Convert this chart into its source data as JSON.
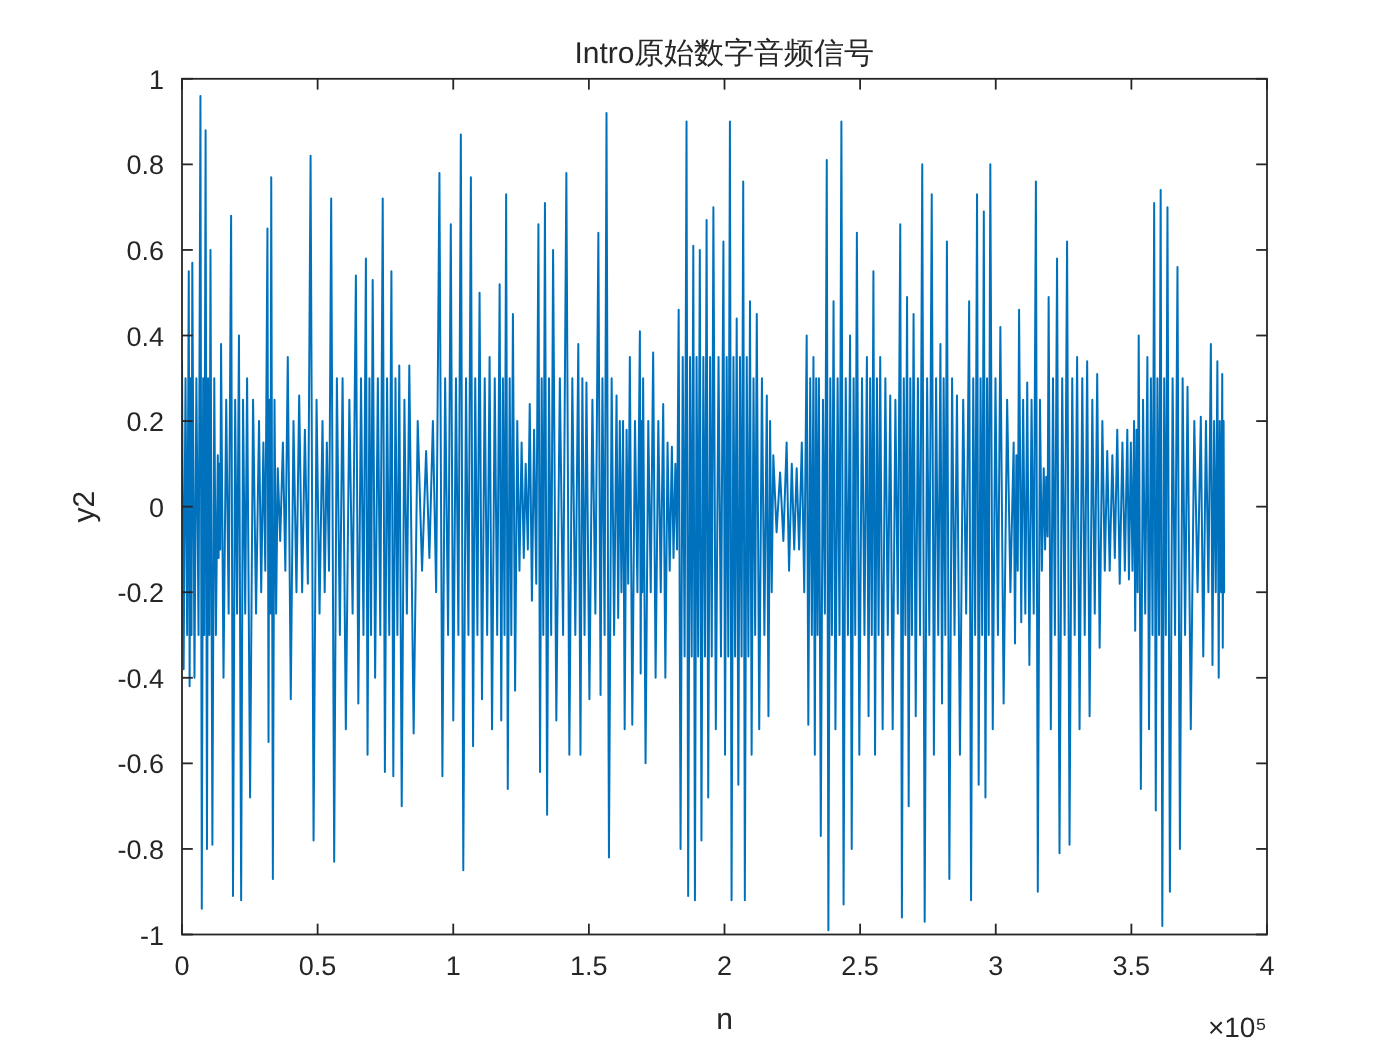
{
  "chart_data": {
    "type": "line",
    "title": "Intro原始数字音频信号",
    "xlabel": "n",
    "ylabel": "y2",
    "annotations": [
      "×10⁵"
    ],
    "color": "#0072bd",
    "xlim": [
      0,
      4
    ],
    "ylim": [
      -1,
      1
    ],
    "xticks": [
      0,
      0.5,
      1,
      1.5,
      2,
      2.5,
      3,
      3.5,
      4
    ],
    "yticks": [
      -1,
      -0.8,
      -0.6,
      -0.4,
      -0.2,
      0,
      0.2,
      0.4,
      0.6,
      0.8,
      1
    ],
    "x": [
      0,
      0.006,
      0.013,
      0.019,
      0.025,
      0.028,
      0.032,
      0.035,
      0.038,
      0.046,
      0.053,
      0.061,
      0.068,
      0.073,
      0.078,
      0.082,
      0.087,
      0.092,
      0.096,
      0.101,
      0.105,
      0.112,
      0.119,
      0.125,
      0.132,
      0.135,
      0.138,
      0.141,
      0.144,
      0.153,
      0.163,
      0.172,
      0.181,
      0.188,
      0.196,
      0.203,
      0.21,
      0.218,
      0.225,
      0.233,
      0.24,
      0.251,
      0.262,
      0.273,
      0.284,
      0.292,
      0.3,
      0.307,
      0.315,
      0.319,
      0.322,
      0.326,
      0.329,
      0.335,
      0.341,
      0.347,
      0.353,
      0.362,
      0.372,
      0.381,
      0.39,
      0.401,
      0.411,
      0.422,
      0.432,
      0.443,
      0.453,
      0.464,
      0.474,
      0.485,
      0.496,
      0.507,
      0.518,
      0.526,
      0.534,
      0.542,
      0.55,
      0.561,
      0.571,
      0.582,
      0.592,
      0.604,
      0.617,
      0.629,
      0.641,
      0.65,
      0.66,
      0.669,
      0.678,
      0.684,
      0.691,
      0.697,
      0.703,
      0.712,
      0.722,
      0.731,
      0.74,
      0.748,
      0.756,
      0.764,
      0.772,
      0.779,
      0.787,
      0.794,
      0.801,
      0.81,
      0.82,
      0.829,
      0.838,
      0.854,
      0.869,
      0.885,
      0.9,
      0.912,
      0.925,
      0.937,
      0.949,
      0.96,
      0.97,
      0.981,
      0.991,
      1.0,
      1.01,
      1.019,
      1.028,
      1.037,
      1.047,
      1.056,
      1.065,
      1.073,
      1.081,
      1.089,
      1.097,
      1.106,
      1.116,
      1.125,
      1.134,
      1.143,
      1.153,
      1.162,
      1.171,
      1.177,
      1.183,
      1.189,
      1.195,
      1.201,
      1.208,
      1.214,
      1.22,
      1.228,
      1.236,
      1.244,
      1.252,
      1.26,
      1.267,
      1.275,
      1.282,
      1.29,
      1.298,
      1.306,
      1.314,
      1.32,
      1.326,
      1.332,
      1.338,
      1.346,
      1.353,
      1.361,
      1.368,
      1.38,
      1.393,
      1.405,
      1.417,
      1.428,
      1.439,
      1.45,
      1.461,
      1.469,
      1.476,
      1.484,
      1.491,
      1.502,
      1.513,
      1.524,
      1.535,
      1.543,
      1.55,
      1.558,
      1.565,
      1.574,
      1.584,
      1.593,
      1.602,
      1.608,
      1.614,
      1.62,
      1.626,
      1.632,
      1.639,
      1.645,
      1.651,
      1.66,
      1.67,
      1.679,
      1.688,
      1.691,
      1.694,
      1.697,
      1.7,
      1.709,
      1.719,
      1.728,
      1.737,
      1.746,
      1.756,
      1.765,
      1.774,
      1.782,
      1.79,
      1.798,
      1.806,
      1.812,
      1.819,
      1.825,
      1.831,
      1.838,
      1.846,
      1.853,
      1.86,
      1.866,
      1.873,
      1.879,
      1.885,
      1.891,
      1.897,
      1.903,
      1.909,
      1.915,
      1.922,
      1.928,
      1.934,
      1.94,
      1.947,
      1.953,
      1.959,
      1.968,
      1.978,
      1.987,
      1.996,
      2.002,
      2.008,
      2.014,
      2.02,
      2.026,
      2.033,
      2.039,
      2.045,
      2.051,
      2.057,
      2.063,
      2.069,
      2.075,
      2.082,
      2.088,
      2.094,
      2.1,
      2.107,
      2.113,
      2.119,
      2.128,
      2.138,
      2.147,
      2.156,
      2.162,
      2.168,
      2.174,
      2.18,
      2.192,
      2.205,
      2.217,
      2.229,
      2.238,
      2.248,
      2.257,
      2.266,
      2.275,
      2.285,
      2.294,
      2.303,
      2.309,
      2.316,
      2.322,
      2.328,
      2.333,
      2.338,
      2.343,
      2.348,
      2.355,
      2.363,
      2.37,
      2.377,
      2.383,
      2.39,
      2.396,
      2.402,
      2.409,
      2.417,
      2.424,
      2.431,
      2.439,
      2.447,
      2.455,
      2.463,
      2.469,
      2.476,
      2.482,
      2.488,
      2.497,
      2.507,
      2.516,
      2.525,
      2.531,
      2.537,
      2.543,
      2.549,
      2.555,
      2.562,
      2.568,
      2.574,
      2.583,
      2.593,
      2.602,
      2.611,
      2.62,
      2.63,
      2.639,
      2.648,
      2.654,
      2.661,
      2.667,
      2.673,
      2.679,
      2.685,
      2.691,
      2.697,
      2.705,
      2.713,
      2.721,
      2.729,
      2.738,
      2.747,
      2.755,
      2.764,
      2.772,
      2.78,
      2.788,
      2.796,
      2.802,
      2.808,
      2.814,
      2.82,
      2.829,
      2.839,
      2.848,
      2.857,
      2.868,
      2.88,
      2.891,
      2.902,
      2.909,
      2.917,
      2.924,
      2.931,
      2.937,
      2.944,
      2.95,
      2.956,
      2.962,
      2.968,
      2.974,
      2.98,
      2.989,
      2.999,
      3.008,
      3.017,
      3.029,
      3.042,
      3.054,
      3.066,
      3.071,
      3.076,
      3.081,
      3.086,
      3.094,
      3.101,
      3.109,
      3.116,
      3.124,
      3.132,
      3.14,
      3.148,
      3.155,
      3.163,
      3.17,
      3.177,
      3.182,
      3.186,
      3.191,
      3.195,
      3.203,
      3.211,
      3.218,
      3.226,
      3.235,
      3.245,
      3.254,
      3.263,
      3.272,
      3.282,
      3.291,
      3.3,
      3.309,
      3.319,
      3.328,
      3.337,
      3.346,
      3.356,
      3.365,
      3.374,
      3.383,
      3.393,
      3.402,
      3.411,
      3.42,
      3.43,
      3.439,
      3.448,
      3.457,
      3.467,
      3.476,
      3.485,
      3.491,
      3.498,
      3.504,
      3.51,
      3.514,
      3.519,
      3.523,
      3.527,
      3.535,
      3.543,
      3.551,
      3.559,
      3.565,
      3.572,
      3.578,
      3.584,
      3.59,
      3.596,
      3.602,
      3.608,
      3.614,
      3.621,
      3.627,
      3.633,
      3.642,
      3.652,
      3.661,
      3.67,
      3.679,
      3.689,
      3.698,
      3.707,
      3.719,
      3.732,
      3.744,
      3.756,
      3.765,
      3.775,
      3.784,
      3.793,
      3.799,
      3.805,
      3.811,
      3.817,
      3.822,
      3.826,
      3.831,
      3.835,
      3.837,
      3.84,
      3.842
    ],
    "values": [
      0.34,
      -0.38,
      0.3,
      -0.3,
      0.55,
      -0.42,
      0.3,
      -0.3,
      0.57,
      -0.4,
      0.3,
      -0.3,
      0.96,
      -0.94,
      0.3,
      -0.3,
      0.88,
      -0.8,
      0.3,
      -0.3,
      0.6,
      -0.79,
      0.3,
      -0.3,
      0.12,
      -0.12,
      0.1,
      -0.1,
      0.38,
      -0.4,
      0.25,
      -0.25,
      0.68,
      -0.91,
      0.25,
      -0.25,
      0.4,
      -0.92,
      0.25,
      -0.25,
      0.3,
      -0.68,
      0.25,
      -0.25,
      0.2,
      -0.2,
      0.15,
      -0.15,
      0.65,
      -0.55,
      0.25,
      -0.25,
      0.77,
      -0.87,
      0.25,
      -0.25,
      0.09,
      -0.08,
      0.15,
      -0.15,
      0.35,
      -0.45,
      0.2,
      -0.2,
      0.26,
      -0.2,
      0.18,
      -0.18,
      0.82,
      -0.78,
      0.25,
      -0.25,
      0.2,
      -0.2,
      0.15,
      -0.15,
      0.72,
      -0.83,
      0.3,
      -0.3,
      0.3,
      -0.52,
      0.25,
      -0.25,
      0.54,
      -0.46,
      0.3,
      -0.3,
      0.58,
      -0.58,
      0.3,
      -0.3,
      0.53,
      -0.4,
      0.3,
      -0.3,
      0.72,
      -0.62,
      0.3,
      -0.3,
      0.55,
      -0.63,
      0.3,
      -0.3,
      0.33,
      -0.7,
      0.25,
      -0.25,
      0.33,
      -0.53,
      0.2,
      -0.15,
      0.13,
      -0.12,
      0.2,
      -0.2,
      0.78,
      -0.63,
      0.3,
      -0.3,
      0.66,
      -0.5,
      0.3,
      -0.3,
      0.87,
      -0.85,
      0.3,
      -0.3,
      0.77,
      -0.56,
      0.3,
      -0.3,
      0.5,
      -0.45,
      0.3,
      -0.3,
      0.35,
      -0.52,
      0.3,
      -0.3,
      0.52,
      -0.5,
      0.3,
      -0.3,
      0.73,
      -0.66,
      0.3,
      -0.3,
      0.45,
      -0.43,
      0.2,
      -0.15,
      0.15,
      -0.12,
      0.1,
      -0.1,
      0.24,
      -0.22,
      0.18,
      -0.18,
      0.66,
      -0.62,
      0.3,
      -0.3,
      0.71,
      -0.72,
      0.3,
      -0.3,
      0.6,
      -0.5,
      0.3,
      -0.3,
      0.78,
      -0.58,
      0.3,
      -0.3,
      0.38,
      -0.58,
      0.3,
      -0.3,
      0.29,
      -0.45,
      0.25,
      -0.25,
      0.64,
      -0.44,
      0.3,
      -0.3,
      0.92,
      -0.82,
      0.3,
      -0.3,
      0.26,
      -0.26,
      0.2,
      -0.2,
      0.2,
      -0.52,
      0.18,
      -0.18,
      0.35,
      -0.51,
      0.2,
      -0.2,
      0.41,
      -0.39,
      0.2,
      -0.2,
      0.3,
      -0.6,
      0.2,
      -0.2,
      0.36,
      -0.4,
      0.2,
      -0.2,
      0.24,
      -0.4,
      0.15,
      -0.15,
      0.14,
      -0.12,
      0.1,
      -0.1,
      0.46,
      -0.8,
      0.35,
      -0.35,
      0.9,
      -0.91,
      0.35,
      -0.35,
      0.61,
      -0.92,
      0.35,
      -0.35,
      0.6,
      -0.78,
      0.35,
      -0.35,
      0.67,
      -0.68,
      0.35,
      -0.35,
      0.7,
      -0.52,
      0.35,
      -0.35,
      0.62,
      -0.58,
      0.35,
      -0.35,
      0.9,
      -0.92,
      0.35,
      -0.35,
      0.44,
      -0.65,
      0.35,
      -0.35,
      0.76,
      -0.92,
      0.35,
      -0.35,
      0.48,
      -0.58,
      0.3,
      -0.3,
      0.45,
      -0.52,
      0.3,
      -0.3,
      0.26,
      -0.49,
      0.2,
      -0.2,
      0.12,
      -0.06,
      0.08,
      -0.08,
      0.15,
      -0.15,
      0.1,
      -0.1,
      0.09,
      -0.1,
      0.15,
      -0.2,
      0.4,
      -0.51,
      0.3,
      -0.3,
      0.35,
      -0.58,
      0.3,
      -0.3,
      0.3,
      -0.77,
      0.25,
      -0.25,
      0.81,
      -0.99,
      0.3,
      -0.3,
      0.48,
      -0.52,
      0.3,
      -0.3,
      0.9,
      -0.93,
      0.3,
      -0.3,
      0.4,
      -0.8,
      0.3,
      -0.3,
      0.64,
      -0.58,
      0.3,
      -0.3,
      0.35,
      -0.49,
      0.3,
      -0.3,
      0.55,
      -0.58,
      0.3,
      -0.3,
      0.35,
      -0.52,
      0.3,
      -0.3,
      0.26,
      -0.52,
      0.25,
      -0.25,
      0.66,
      -0.96,
      0.3,
      -0.3,
      0.49,
      -0.7,
      0.3,
      -0.3,
      0.45,
      -0.49,
      0.3,
      -0.3,
      0.8,
      -0.97,
      0.3,
      -0.3,
      0.73,
      -0.58,
      0.3,
      -0.3,
      0.38,
      -0.46,
      0.3,
      -0.3,
      0.62,
      -0.87,
      0.3,
      -0.3,
      0.26,
      -0.58,
      0.25,
      -0.25,
      0.48,
      -0.92,
      0.3,
      -0.3,
      0.73,
      -0.65,
      0.3,
      -0.3,
      0.69,
      -0.68,
      0.3,
      -0.3,
      0.8,
      -0.52,
      0.3,
      -0.3,
      0.42,
      -0.46,
      0.25,
      -0.2,
      0.15,
      -0.32,
      0.12,
      -0.15,
      0.46,
      -0.27,
      0.25,
      -0.25,
      0.29,
      -0.37,
      0.25,
      -0.25,
      0.76,
      -0.9,
      0.25,
      -0.15,
      0.09,
      -0.1,
      0.07,
      -0.07,
      0.49,
      -0.52,
      0.3,
      -0.3,
      0.58,
      -0.81,
      0.3,
      -0.3,
      0.62,
      -0.79,
      0.3,
      -0.3,
      0.35,
      -0.52,
      0.3,
      -0.3,
      0.34,
      -0.49,
      0.25,
      -0.25,
      0.31,
      -0.33,
      0.2,
      -0.15,
      0.13,
      -0.15,
      0.12,
      -0.12,
      0.18,
      -0.18,
      0.15,
      -0.15,
      0.18,
      -0.17,
      0.15,
      -0.15,
      0.2,
      -0.29,
      0.18,
      -0.2,
      0.4,
      -0.66,
      0.25,
      -0.25,
      0.35,
      -0.52,
      0.3,
      -0.3,
      0.71,
      -0.71,
      0.3,
      -0.3,
      0.74,
      -0.98,
      0.3,
      -0.3,
      0.7,
      -0.9,
      0.3,
      -0.3,
      0.56,
      -0.8,
      0.3,
      -0.3,
      0.28,
      -0.52,
      0.2,
      -0.2,
      0.21,
      -0.35,
      0.2,
      -0.2,
      0.38,
      -0.37,
      0.2,
      -0.2,
      0.34,
      -0.4,
      0.2,
      -0.2,
      0.31,
      -0.33,
      0.2,
      -0.2
    ]
  }
}
